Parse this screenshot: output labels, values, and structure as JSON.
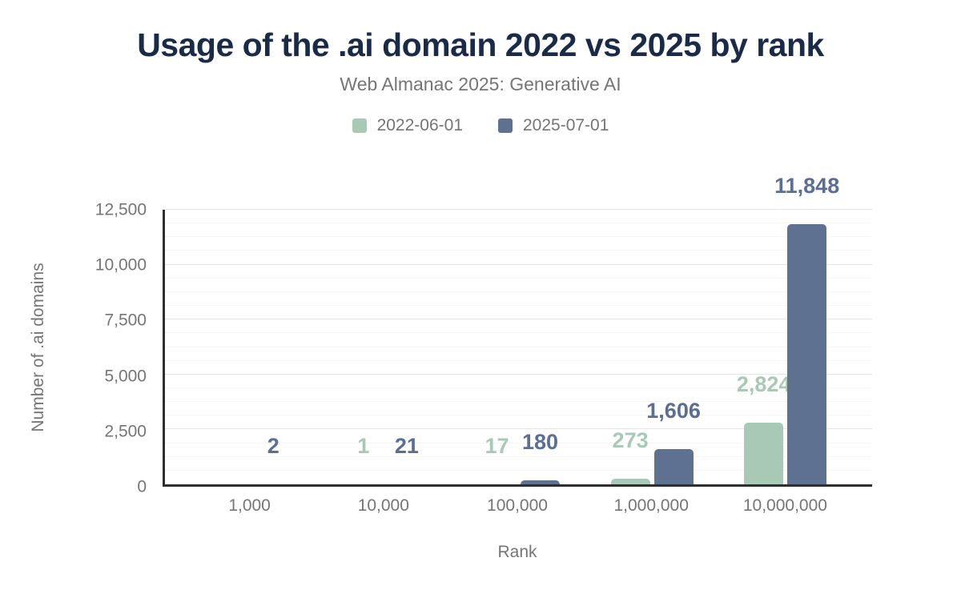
{
  "chart_data": {
    "type": "bar",
    "title": "Usage of the .ai domain 2022 vs 2025 by rank",
    "subtitle": "Web Almanac 2025: Generative AI",
    "xlabel": "Rank",
    "ylabel": "Number of .ai domains",
    "categories": [
      "1,000",
      "10,000",
      "100,000",
      "1,000,000",
      "10,000,000"
    ],
    "series": [
      {
        "name": "2022-06-01",
        "color": "#a7c9b6",
        "label_color": "#a7c9b6",
        "values": [
          0,
          1,
          17,
          273,
          2824
        ],
        "labels": [
          "",
          "1",
          "17",
          "273",
          "2,824"
        ]
      },
      {
        "name": "2025-07-01",
        "color": "#5f7190",
        "label_color": "#5b6e93",
        "values": [
          2,
          21,
          180,
          1606,
          11848
        ],
        "labels": [
          "2",
          "21",
          "180",
          "1,606",
          "11,848"
        ]
      }
    ],
    "ylim": [
      0,
      12500
    ],
    "ytick_step": 2500,
    "minor_grid_step": 625,
    "yticks": [
      "0",
      "2,500",
      "5,000",
      "7,500",
      "10,000",
      "12,500"
    ],
    "grid": true,
    "legend_position": "top"
  },
  "colors": {
    "title": "#1a2b49",
    "axis_text": "#757575",
    "axis_line": "#2e2e2e",
    "grid_major": "#e4e4e4",
    "grid_minor": "#f5f5f5",
    "background": "#ffffff"
  }
}
